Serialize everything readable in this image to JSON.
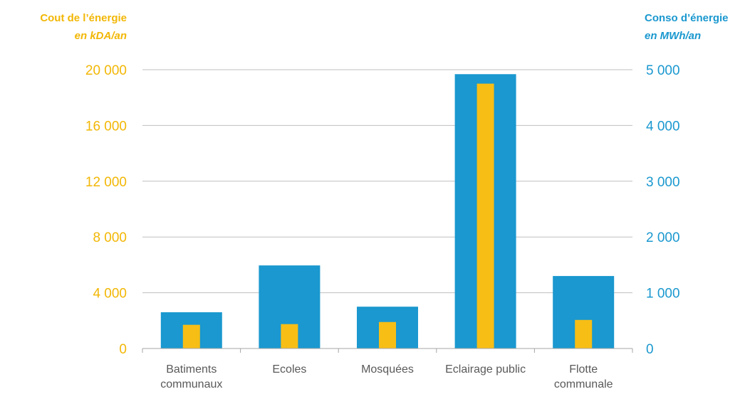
{
  "chart_data": {
    "type": "bar",
    "categories": [
      [
        "Batiments",
        "communaux"
      ],
      [
        "Ecoles"
      ],
      [
        "Mosquées"
      ],
      [
        "Eclairage public"
      ],
      [
        "Flotte",
        "communale"
      ]
    ],
    "series": [
      {
        "values": [
          650,
          1490,
          750,
          4920,
          1300
        ],
        "axis": "right",
        "color": "#1A98CF"
      },
      {
        "values": [
          1700,
          1750,
          1900,
          19000,
          2050
        ],
        "axis": "left",
        "color": "#F7BE16"
      }
    ],
    "left_axis": {
      "title_line1": "Cout de l’énergie",
      "title_line2": "en kDA/an",
      "ylim": [
        0,
        20000
      ],
      "ticks": [
        0,
        4000,
        8000,
        12000,
        16000,
        20000
      ],
      "tick_labels": [
        "0",
        "4 000",
        "8 000",
        "12 000",
        "16 000",
        "20 000"
      ],
      "color": "#F2B705"
    },
    "right_axis": {
      "title_line1": "Conso d’énergie",
      "title_line2": "en MWh/an",
      "ylim": [
        0,
        5000
      ],
      "ticks": [
        0,
        1000,
        2000,
        3000,
        4000,
        5000
      ],
      "tick_labels": [
        "0",
        "1 000",
        "2 000",
        "3 000",
        "4 000",
        "5 000"
      ],
      "color": "#1A98CF"
    },
    "grid": true
  }
}
